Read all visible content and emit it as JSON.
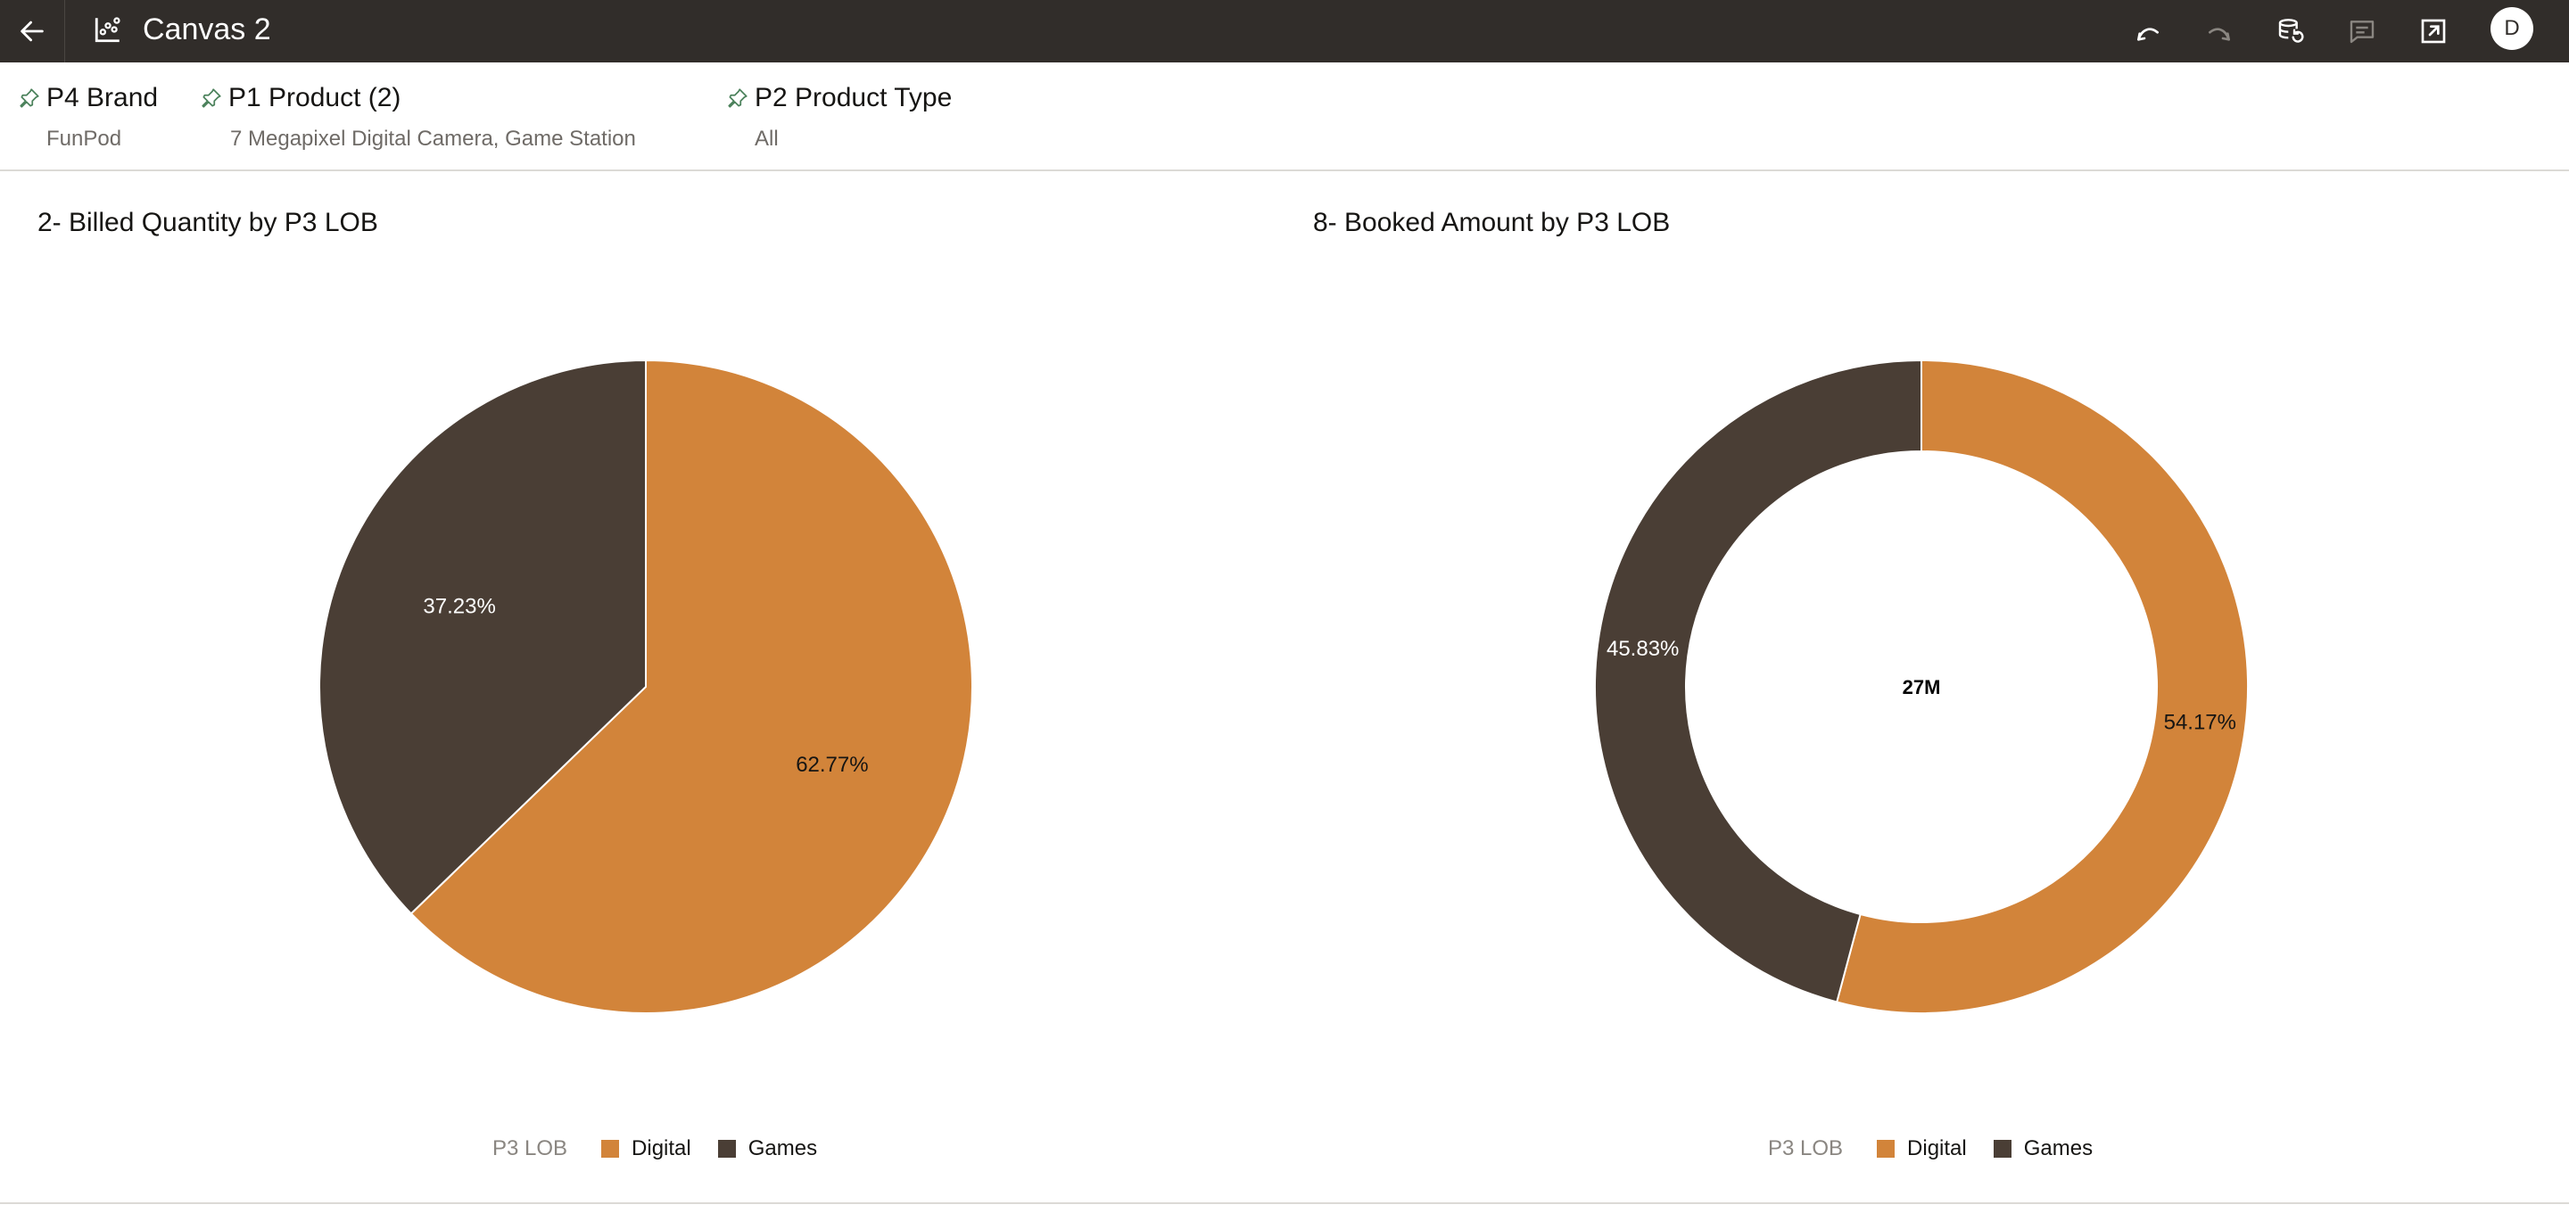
{
  "header": {
    "title": "Canvas 2",
    "avatar_initial": "D",
    "icons": [
      "back-arrow-icon",
      "canvas-chart-icon",
      "undo-icon",
      "redo-icon",
      "data-refresh-icon",
      "comment-icon",
      "export-icon"
    ]
  },
  "filters": [
    {
      "label": "P4 Brand",
      "value": "FunPod"
    },
    {
      "label": "P1 Product (2)",
      "value": "7 Megapixel Digital Camera, Game Station"
    },
    {
      "label": "P2 Product Type",
      "value": "All"
    }
  ],
  "colors": {
    "digital": "#d2843a",
    "games": "#4a3e35",
    "topbar": "#312d2a"
  },
  "chart_data": [
    {
      "type": "pie",
      "title": "2- Billed Quantity by P3 LOB",
      "legend_title": "P3 LOB",
      "legend_position": "bottom",
      "categories": [
        "Digital",
        "Games"
      ],
      "values": [
        62.77,
        37.23
      ],
      "labels": [
        "62.77%",
        "37.23%"
      ],
      "colors": [
        "#d2843a",
        "#4a3e35"
      ]
    },
    {
      "type": "pie",
      "donut": true,
      "title": "8- Booked Amount by P3 LOB",
      "center_label": "27M",
      "legend_title": "P3 LOB",
      "legend_position": "bottom",
      "categories": [
        "Digital",
        "Games"
      ],
      "values": [
        54.17,
        45.83
      ],
      "labels": [
        "54.17%",
        "45.83%"
      ],
      "colors": [
        "#d2843a",
        "#4a3e35"
      ]
    }
  ]
}
